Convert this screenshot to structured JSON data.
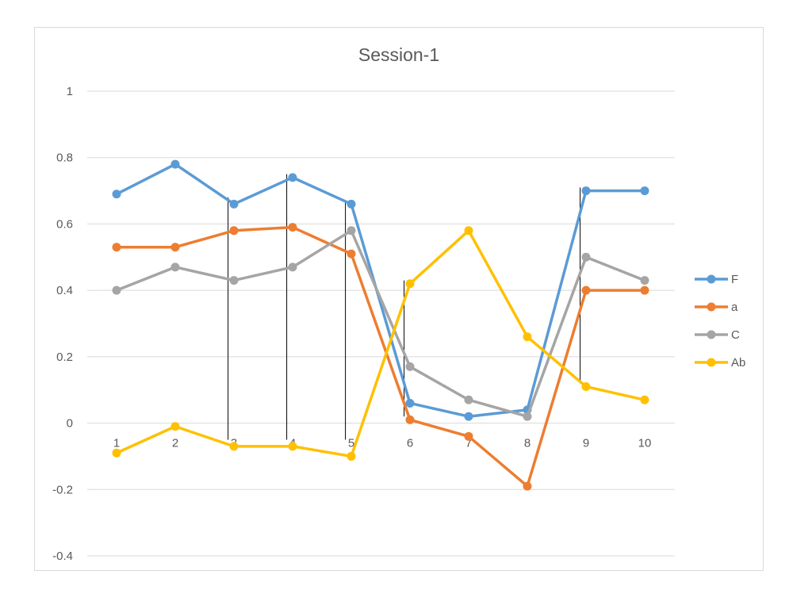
{
  "chart_data": {
    "type": "line",
    "title": "Session-1",
    "xlabel": "",
    "ylabel": "",
    "categories": [
      "1",
      "2",
      "3",
      "4",
      "5",
      "6",
      "7",
      "8",
      "9",
      "10"
    ],
    "ylim": [
      -0.4,
      1
    ],
    "yticks": [
      1,
      0.8,
      0.6,
      0.4,
      0.2,
      0,
      -0.2,
      -0.4
    ],
    "ytick_labels": [
      "1",
      "0.8",
      "0.6",
      "0.4",
      "0.2",
      "0",
      "-0.2",
      "-0.4"
    ],
    "grid": true,
    "legend_position": "right",
    "series": [
      {
        "name": "F",
        "color": "#5b9bd5",
        "values": [
          0.69,
          0.78,
          0.66,
          0.74,
          0.66,
          0.06,
          0.02,
          0.04,
          0.7,
          0.7
        ]
      },
      {
        "name": "a",
        "color": "#ed7d31",
        "values": [
          0.53,
          0.53,
          0.58,
          0.59,
          0.51,
          0.01,
          -0.04,
          -0.19,
          0.4,
          0.4
        ]
      },
      {
        "name": "C",
        "color": "#a5a5a5",
        "values": [
          0.4,
          0.47,
          0.43,
          0.47,
          0.58,
          0.17,
          0.07,
          0.02,
          0.5,
          0.43
        ]
      },
      {
        "name": "Ab",
        "color": "#ffc000",
        "values": [
          -0.09,
          -0.01,
          -0.07,
          -0.07,
          -0.1,
          0.42,
          0.58,
          0.26,
          0.11,
          0.07
        ]
      }
    ],
    "annotation_lines": [
      {
        "x": 2.9,
        "y_from": -0.05,
        "y_to": 0.68
      },
      {
        "x": 3.9,
        "y_from": -0.05,
        "y_to": 0.75
      },
      {
        "x": 4.9,
        "y_from": -0.05,
        "y_to": 0.67
      },
      {
        "x": 5.9,
        "y_from": 0.02,
        "y_to": 0.43
      },
      {
        "x": 8.9,
        "y_from": 0.12,
        "y_to": 0.71
      }
    ]
  }
}
